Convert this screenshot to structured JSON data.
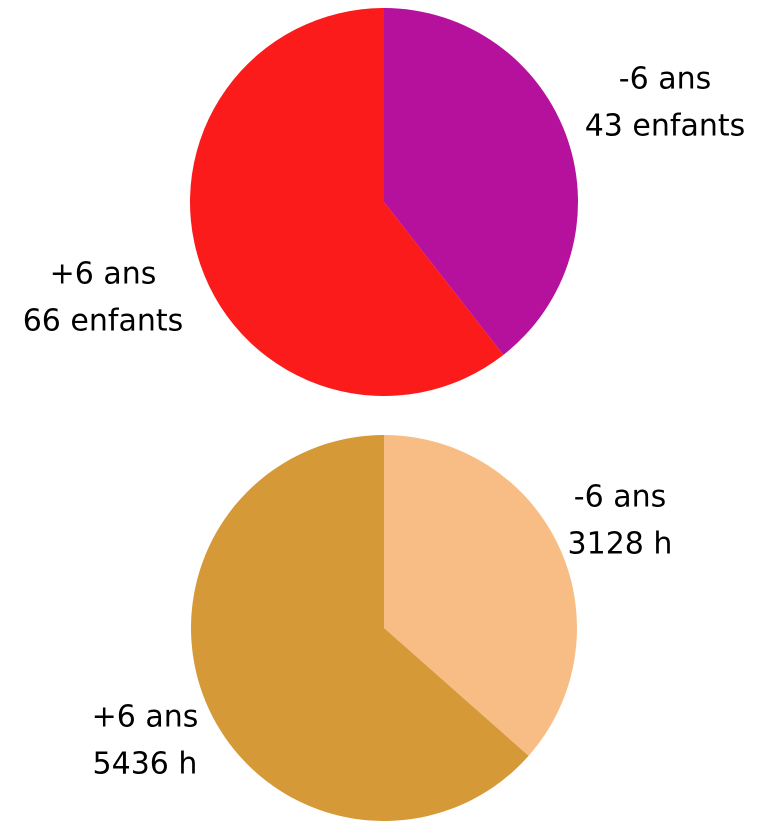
{
  "chart_data": [
    {
      "type": "pie",
      "categories": [
        "-6 ans",
        "+6 ans"
      ],
      "values": [
        43,
        66
      ],
      "value_labels": [
        "43 enfants",
        "66 enfants"
      ],
      "colors": [
        "#b6119d",
        "#fb1b1b"
      ]
    },
    {
      "type": "pie",
      "categories": [
        "-6 ans",
        "+6 ans"
      ],
      "values": [
        3128,
        5436
      ],
      "value_labels": [
        "3128 h",
        "5436 h"
      ],
      "colors": [
        "#f8bd85",
        "#d69938"
      ]
    }
  ]
}
